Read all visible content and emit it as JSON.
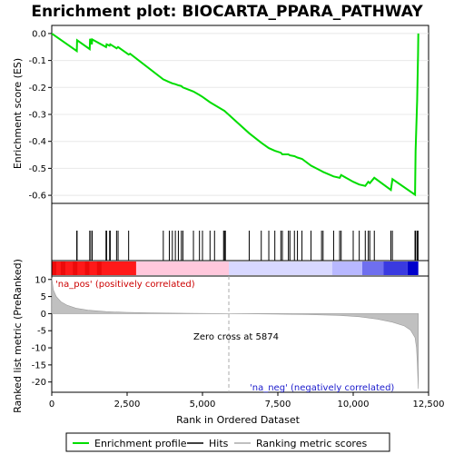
{
  "chart_data": {
    "type": "line",
    "title": "Enrichment plot: BIOCARTA_PPARA_PATHWAY",
    "top_panel": {
      "ylabel": "Enrichment score (ES)",
      "ylim": [
        -0.63,
        0.03
      ],
      "yticks": [
        "0.0",
        "-0.1",
        "-0.2",
        "-0.3",
        "-0.4",
        "-0.5",
        "-0.6"
      ],
      "ytick_values": [
        0.0,
        -0.1,
        -0.2,
        -0.3,
        -0.4,
        -0.5,
        -0.6
      ],
      "series_color": "#00dd00",
      "series": {
        "name": "Enrichment profile",
        "x": [
          0,
          830,
          840,
          1260,
          1270,
          1330,
          1340,
          1800,
          1820,
          1920,
          1940,
          2150,
          2200,
          2550,
          2600,
          3700,
          3900,
          4000,
          4100,
          4200,
          4300,
          4350,
          4700,
          4900,
          5000,
          5250,
          5400,
          5700,
          5730,
          5760,
          6550,
          6950,
          7200,
          7400,
          7600,
          7650,
          7850,
          7900,
          8050,
          8150,
          8300,
          8600,
          8950,
          9000,
          9350,
          9550,
          9600,
          10000,
          10200,
          10400,
          10500,
          10550,
          10700,
          11250,
          11300,
          12050,
          12070,
          12120,
          12150,
          12160
        ],
        "y": [
          0.0,
          -0.065,
          -0.025,
          -0.058,
          -0.02,
          -0.04,
          -0.022,
          -0.05,
          -0.04,
          -0.045,
          -0.04,
          -0.055,
          -0.05,
          -0.078,
          -0.075,
          -0.17,
          -0.18,
          -0.185,
          -0.188,
          -0.192,
          -0.195,
          -0.2,
          -0.215,
          -0.228,
          -0.235,
          -0.255,
          -0.265,
          -0.285,
          -0.287,
          -0.29,
          -0.37,
          -0.405,
          -0.425,
          -0.435,
          -0.442,
          -0.448,
          -0.448,
          -0.452,
          -0.455,
          -0.46,
          -0.465,
          -0.49,
          -0.51,
          -0.513,
          -0.53,
          -0.535,
          -0.525,
          -0.55,
          -0.56,
          -0.565,
          -0.55,
          -0.555,
          -0.535,
          -0.58,
          -0.54,
          -0.598,
          -0.435,
          -0.25,
          -0.08,
          0.0
        ]
      },
      "hits_x": [
        830,
        840,
        1260,
        1270,
        1330,
        1340,
        1800,
        1820,
        1920,
        1940,
        2150,
        2200,
        2550,
        3700,
        3900,
        4000,
        4100,
        4200,
        4300,
        4350,
        4700,
        4900,
        5000,
        5250,
        5400,
        5700,
        5730,
        5760,
        6550,
        6950,
        7200,
        7400,
        7600,
        7650,
        7850,
        7900,
        8050,
        8150,
        8300,
        8600,
        8950,
        9000,
        9350,
        9550,
        9600,
        10000,
        10200,
        10400,
        10500,
        10550,
        10700,
        11250,
        11300,
        12050,
        12070,
        12120,
        12150
      ]
    },
    "bottom_panel": {
      "ylabel": "Ranked list metric (PreRanked)",
      "xlabel": "Rank in Ordered Dataset",
      "xlim": [
        0,
        12500
      ],
      "xticks": [
        "0",
        "2,500",
        "5,000",
        "7,500",
        "10,000",
        "12,500"
      ],
      "xtick_values": [
        0,
        2500,
        5000,
        7500,
        10000,
        12500
      ],
      "ylim": [
        -23,
        11
      ],
      "yticks": [
        "10",
        "5",
        "0",
        "-5",
        "-10",
        "-15",
        "-20"
      ],
      "ytick_values": [
        10,
        5,
        0,
        -5,
        -10,
        -15,
        -20
      ],
      "metric_x": [
        0,
        50,
        150,
        300,
        500,
        800,
        1200,
        1800,
        2500,
        3500,
        4500,
        5500,
        5874,
        6500,
        7500,
        8500,
        9500,
        10200,
        10800,
        11300,
        11700,
        11900,
        12050,
        12100,
        12130,
        12160
      ],
      "metric_y": [
        10.5,
        7,
        5,
        3.5,
        2.5,
        1.6,
        1.0,
        0.6,
        0.35,
        0.2,
        0.1,
        0.03,
        0.0,
        -0.05,
        -0.15,
        -0.3,
        -0.5,
        -0.9,
        -1.6,
        -2.5,
        -3.6,
        -4.8,
        -7,
        -10,
        -15,
        -22
      ],
      "zero_cross_label": "Zero cross at 5874",
      "zero_cross_x": 5874,
      "pos_label": "'na_pos' (positively correlated)",
      "neg_label": "'na_neg' (negatively correlated)"
    },
    "legend": {
      "entries": [
        "Enrichment profile",
        "Hits",
        "Ranking metric scores"
      ],
      "placement": "bottom"
    },
    "colors": {
      "profile": "#00dd00",
      "hits": "#000000",
      "metric_fill": "#c0c0c0",
      "pos_strong": "#ff0000",
      "pos_weak": "#ffc8dc",
      "neg_weak": "#d8d8ff",
      "neg_strong": "#0000cc"
    }
  }
}
